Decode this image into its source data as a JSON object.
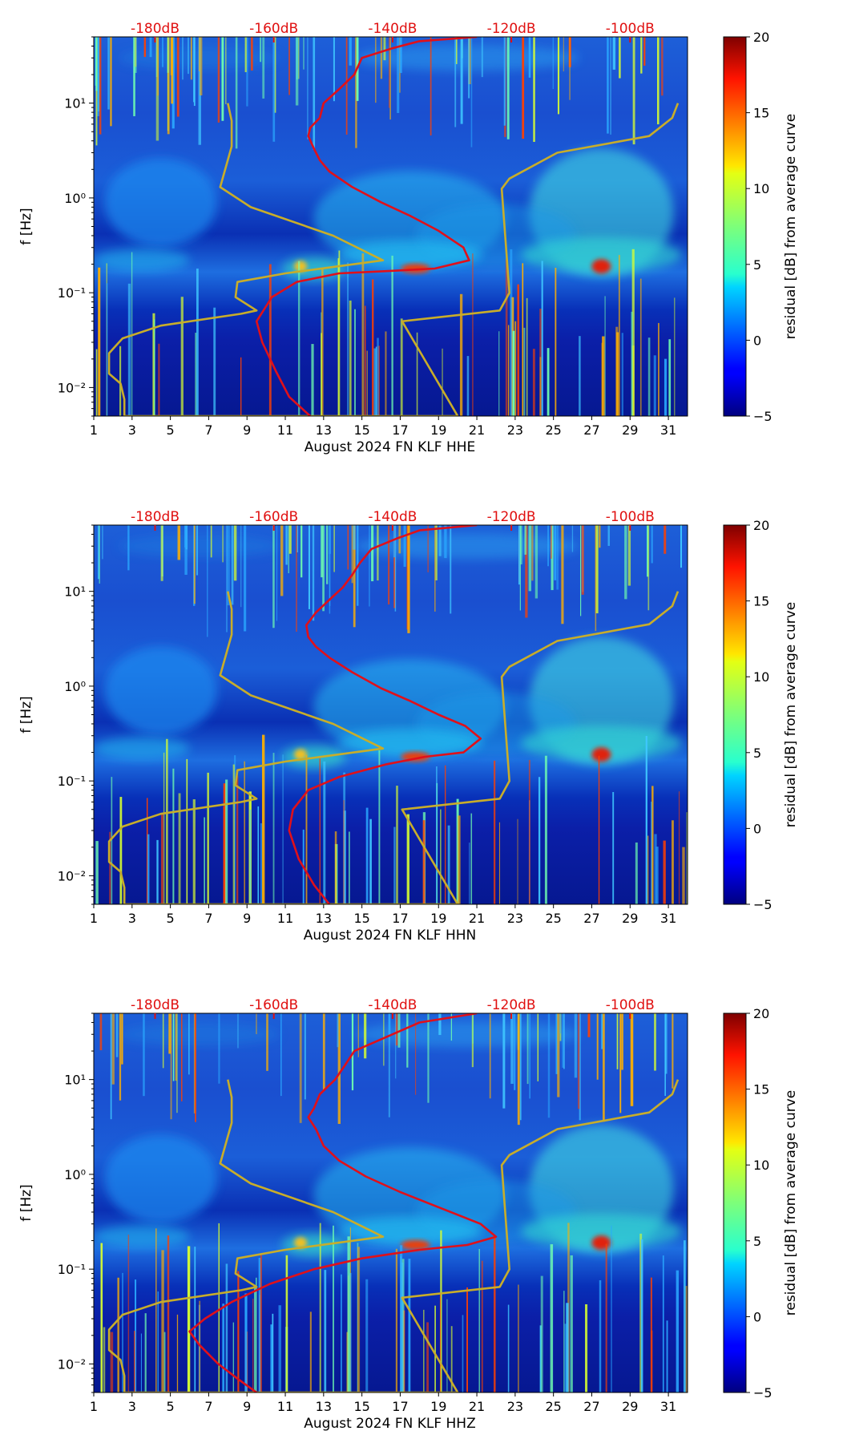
{
  "figure": {
    "title": ""
  },
  "colors": {
    "noise_model": "#c8ad2a",
    "median_psd": "#e0101a",
    "db_label": "#e01010"
  },
  "chart_data": [
    {
      "type": "heatmap",
      "channel": "HHE",
      "xlabel": "August 2024 FN KLF  HHE",
      "ylabel": "f [Hz]",
      "cbar_label": "residual [dB] from average curve",
      "xlim": [
        1,
        32
      ],
      "ylim": [
        0.005,
        50
      ],
      "xticks": [
        1,
        3,
        5,
        7,
        9,
        11,
        13,
        15,
        17,
        19,
        21,
        23,
        25,
        27,
        29,
        31
      ],
      "xtick_labels": [
        "1",
        "3",
        "5",
        "7",
        "9",
        "11",
        "13",
        "15",
        "17",
        "19",
        "21",
        "23",
        "25",
        "27",
        "29",
        "31"
      ],
      "ytick_labels": [
        "10⁻²",
        "10⁻¹",
        "10⁰",
        "10¹"
      ],
      "yticks": [
        0.01,
        0.1,
        1,
        10
      ],
      "cbar_range": [
        -5,
        20
      ],
      "cbar_tick_labels": [
        "−5",
        "0",
        "5",
        "10",
        "15",
        "20"
      ],
      "db_scale": {
        "labels": [
          "-180dB",
          "-160dB",
          "-140dB",
          "-120dB",
          "-100dB"
        ],
        "at_day": [
          4.2,
          10.4,
          16.6,
          22.8,
          29.0
        ]
      },
      "series": [
        {
          "name": "noise_model",
          "x": [
            8.0,
            8.2,
            8.2,
            7.6,
            9.2,
            13.5,
            16.1,
            11.0,
            8.5,
            8.4,
            9.5,
            8.7,
            4.5,
            2.5,
            1.8,
            1.8,
            2.4,
            2.6,
            2.6,
            20.0,
            17.1,
            22.2,
            22.7,
            22.3,
            22.7,
            25.2,
            30.0,
            31.2,
            31.5
          ],
          "y": [
            10,
            6.5,
            3.5,
            1.3,
            0.8,
            0.4,
            0.22,
            0.16,
            0.13,
            0.09,
            0.065,
            0.06,
            0.045,
            0.033,
            0.023,
            0.014,
            0.011,
            0.0075,
            0.005,
            0.005,
            0.05,
            0.065,
            0.1,
            1.25,
            1.6,
            3.0,
            4.5,
            7.0,
            10.0
          ]
        },
        {
          "name": "median_psd",
          "x": [
            12.3,
            11.2,
            10.5,
            9.8,
            9.5,
            10.3,
            11.6,
            13.8,
            16.5,
            18.8,
            20.6,
            20.3,
            19.0,
            17.5,
            16.0,
            14.5,
            13.3,
            12.8,
            12.5,
            12.2,
            12.3,
            12.8,
            13.0,
            13.8,
            14.6,
            15.0,
            16.6,
            18.0,
            21.0
          ],
          "y": [
            0.005,
            0.008,
            0.015,
            0.03,
            0.05,
            0.09,
            0.13,
            0.16,
            0.17,
            0.18,
            0.22,
            0.3,
            0.45,
            0.65,
            0.9,
            1.3,
            1.9,
            2.5,
            3.3,
            4.5,
            5.5,
            7.0,
            10.0,
            14.0,
            20.0,
            30.0,
            38.0,
            45.0,
            50.0
          ]
        }
      ]
    },
    {
      "type": "heatmap",
      "channel": "HHN",
      "xlabel": "August 2024 FN KLF  HHN",
      "ylabel": "f [Hz]",
      "cbar_label": "residual [dB] from average curve",
      "xlim": [
        1,
        32
      ],
      "ylim": [
        0.005,
        50
      ],
      "xticks": [
        1,
        3,
        5,
        7,
        9,
        11,
        13,
        15,
        17,
        19,
        21,
        23,
        25,
        27,
        29,
        31
      ],
      "xtick_labels": [
        "1",
        "3",
        "5",
        "7",
        "9",
        "11",
        "13",
        "15",
        "17",
        "19",
        "21",
        "23",
        "25",
        "27",
        "29",
        "31"
      ],
      "ytick_labels": [
        "10⁻²",
        "10⁻¹",
        "10⁰",
        "10¹"
      ],
      "yticks": [
        0.01,
        0.1,
        1,
        10
      ],
      "cbar_range": [
        -5,
        20
      ],
      "cbar_tick_labels": [
        "−5",
        "0",
        "5",
        "10",
        "15",
        "20"
      ],
      "db_scale": {
        "labels": [
          "-180dB",
          "-160dB",
          "-140dB",
          "-120dB",
          "-100dB"
        ],
        "at_day": [
          4.2,
          10.4,
          16.6,
          22.8,
          29.0
        ]
      },
      "series": [
        {
          "name": "noise_model",
          "x": [
            8.0,
            8.2,
            8.2,
            7.6,
            9.2,
            13.5,
            16.1,
            11.0,
            8.5,
            8.4,
            9.5,
            8.7,
            4.5,
            2.5,
            1.8,
            1.8,
            2.4,
            2.6,
            2.6,
            20.0,
            17.1,
            22.2,
            22.7,
            22.3,
            22.7,
            25.2,
            30.0,
            31.2,
            31.5
          ],
          "y": [
            10,
            6.5,
            3.5,
            1.3,
            0.8,
            0.4,
            0.22,
            0.16,
            0.13,
            0.09,
            0.065,
            0.06,
            0.045,
            0.033,
            0.023,
            0.014,
            0.011,
            0.0075,
            0.005,
            0.005,
            0.05,
            0.065,
            0.1,
            1.25,
            1.6,
            3.0,
            4.5,
            7.0,
            10.0
          ]
        },
        {
          "name": "median_psd",
          "x": [
            13.3,
            12.5,
            11.7,
            11.2,
            11.4,
            12.2,
            13.8,
            16.3,
            18.3,
            20.3,
            21.2,
            20.4,
            19.0,
            17.5,
            16.0,
            14.5,
            13.3,
            12.6,
            12.2,
            12.1,
            12.6,
            13.4,
            14.0,
            14.5,
            14.9,
            15.5,
            16.8,
            18.0,
            21.0
          ],
          "y": [
            0.005,
            0.008,
            0.015,
            0.03,
            0.05,
            0.08,
            0.11,
            0.15,
            0.18,
            0.2,
            0.28,
            0.38,
            0.5,
            0.7,
            0.95,
            1.4,
            2.0,
            2.6,
            3.3,
            4.4,
            6.0,
            8.5,
            11.0,
            15.0,
            20.0,
            28.0,
            36.0,
            44.0,
            50.0
          ]
        }
      ]
    },
    {
      "type": "heatmap",
      "channel": "HHZ",
      "xlabel": "August 2024 FN KLF  HHZ",
      "ylabel": "f [Hz]",
      "cbar_label": "residual [dB] from average curve",
      "xlim": [
        1,
        32
      ],
      "ylim": [
        0.005,
        50
      ],
      "xticks": [
        1,
        3,
        5,
        7,
        9,
        11,
        13,
        15,
        17,
        19,
        21,
        23,
        25,
        27,
        29,
        31
      ],
      "xtick_labels": [
        "1",
        "3",
        "5",
        "7",
        "9",
        "11",
        "13",
        "15",
        "17",
        "19",
        "21",
        "23",
        "25",
        "27",
        "29",
        "31"
      ],
      "ytick_labels": [
        "10⁻²",
        "10⁻¹",
        "10⁰",
        "10¹"
      ],
      "yticks": [
        0.01,
        0.1,
        1,
        10
      ],
      "cbar_range": [
        -5,
        20
      ],
      "cbar_tick_labels": [
        "−5",
        "0",
        "5",
        "10",
        "15",
        "20"
      ],
      "db_scale": {
        "labels": [
          "-180dB",
          "-160dB",
          "-140dB",
          "-120dB",
          "-100dB"
        ],
        "at_day": [
          4.2,
          10.4,
          16.6,
          22.8,
          29.0
        ]
      },
      "series": [
        {
          "name": "noise_model",
          "x": [
            8.0,
            8.2,
            8.2,
            7.6,
            9.2,
            13.5,
            16.1,
            11.0,
            8.5,
            8.4,
            9.5,
            8.7,
            4.5,
            2.5,
            1.8,
            1.8,
            2.4,
            2.6,
            2.6,
            20.0,
            17.1,
            22.2,
            22.7,
            22.3,
            22.7,
            25.2,
            30.0,
            31.2,
            31.5
          ],
          "y": [
            10,
            6.5,
            3.5,
            1.3,
            0.8,
            0.4,
            0.22,
            0.16,
            0.13,
            0.09,
            0.065,
            0.06,
            0.045,
            0.033,
            0.023,
            0.014,
            0.011,
            0.0075,
            0.005,
            0.005,
            0.05,
            0.065,
            0.1,
            1.25,
            1.6,
            3.0,
            4.5,
            7.0,
            10.0
          ]
        },
        {
          "name": "median_psd",
          "x": [
            9.5,
            8.5,
            7.5,
            6.5,
            6.0,
            6.8,
            8.2,
            10.2,
            12.5,
            15.0,
            18.0,
            20.5,
            22.0,
            21.2,
            19.0,
            17.0,
            15.2,
            13.8,
            13.0,
            12.6,
            12.2,
            12.5,
            12.8,
            13.6,
            14.1,
            14.6,
            16.6,
            18.0,
            21.0
          ],
          "y": [
            0.005,
            0.007,
            0.01,
            0.016,
            0.022,
            0.03,
            0.045,
            0.07,
            0.1,
            0.13,
            0.16,
            0.18,
            0.22,
            0.3,
            0.45,
            0.65,
            0.95,
            1.4,
            2.0,
            3.0,
            4.0,
            5.0,
            7.0,
            10.0,
            14.0,
            20.0,
            30.0,
            40.0,
            50.0
          ]
        }
      ]
    }
  ]
}
